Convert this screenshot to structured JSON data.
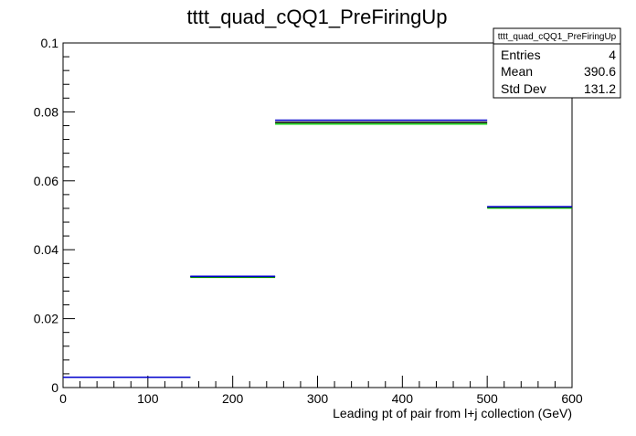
{
  "chart_data": {
    "type": "histogram",
    "title": "tttt_quad_cQQ1_PreFiringUp",
    "xlabel": "Leading pt of pair from l+j collection (GeV)",
    "ylabel": "",
    "xlim": [
      0,
      600
    ],
    "ylim": [
      0,
      0.1
    ],
    "x_ticks": [
      0,
      100,
      200,
      300,
      400,
      500,
      600
    ],
    "y_ticks": [
      0,
      0.02,
      0.04,
      0.06,
      0.08,
      0.1
    ],
    "y_tick_labels": [
      "0",
      "0.02",
      "0.04",
      "0.06",
      "0.08",
      "0.1"
    ],
    "grid": false,
    "series": [
      {
        "color": "#00cc00",
        "bins": [
          {
            "x0": 0,
            "x1": 150,
            "y": 0.003
          },
          {
            "x0": 150,
            "x1": 250,
            "y": 0.032
          },
          {
            "x0": 250,
            "x1": 500,
            "y": 0.0765
          },
          {
            "x0": 500,
            "x1": 600,
            "y": 0.0521
          }
        ]
      },
      {
        "color": "#000000",
        "bins": [
          {
            "x0": 0,
            "x1": 150,
            "y": 0.003
          },
          {
            "x0": 150,
            "x1": 250,
            "y": 0.0322
          },
          {
            "x0": 250,
            "x1": 500,
            "y": 0.077
          },
          {
            "x0": 500,
            "x1": 600,
            "y": 0.0524
          }
        ]
      },
      {
        "color": "#0000cc",
        "bins": [
          {
            "x0": 0,
            "x1": 150,
            "y": 0.003
          },
          {
            "x0": 150,
            "x1": 250,
            "y": 0.0323
          },
          {
            "x0": 250,
            "x1": 500,
            "y": 0.0776
          },
          {
            "x0": 500,
            "x1": 600,
            "y": 0.0525
          }
        ]
      }
    ],
    "stats_box": {
      "title": "tttt_quad_cQQ1_PreFiringUp",
      "rows": [
        {
          "label": "Entries",
          "value": "4"
        },
        {
          "label": "Mean",
          "value": "390.6"
        },
        {
          "label": "Std Dev",
          "value": "131.2"
        }
      ]
    }
  }
}
